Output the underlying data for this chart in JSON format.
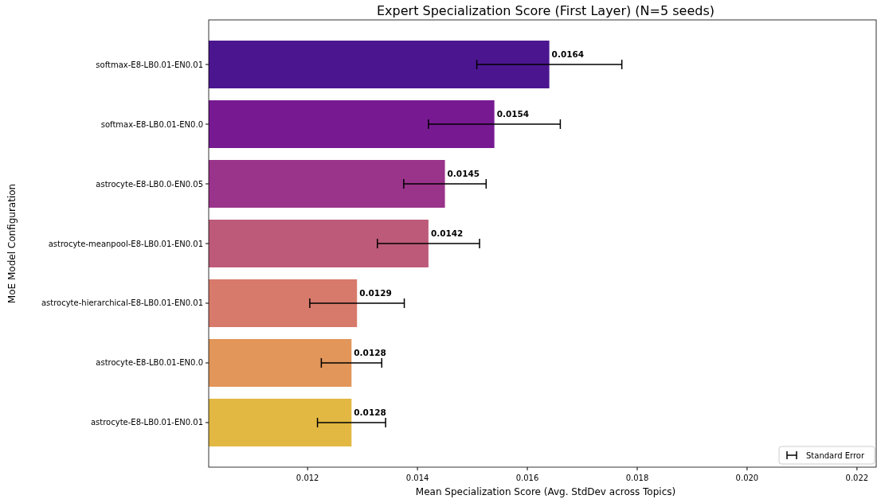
{
  "chart_data": {
    "type": "bar",
    "orientation": "horizontal",
    "title": "Expert Specialization Score (First Layer) (N=5 seeds)",
    "xlabel": "Mean Specialization Score (Avg. StdDev across Topics)",
    "ylabel": "MoE Model Configuration",
    "categories": [
      "softmax-E8-LB0.01-EN0.01",
      "softmax-E8-LB0.01-EN0.0",
      "astrocyte-E8-LB0.0-EN0.05",
      "astrocyte-meanpool-E8-LB0.01-EN0.01",
      "astrocyte-hierarchical-E8-LB0.01-EN0.01",
      "astrocyte-E8-LB0.01-EN0.0",
      "astrocyte-E8-LB0.01-EN0.01"
    ],
    "series": [
      {
        "name": "Standard Error",
        "values": [
          0.0164,
          0.0154,
          0.0145,
          0.0142,
          0.0129,
          0.0128,
          0.0128
        ],
        "colors": [
          "#4b1590",
          "#771a92",
          "#9a338a",
          "#bd5a79",
          "#d77a6b",
          "#e2965a",
          "#e2b842"
        ],
        "errors": [
          0.00132,
          0.0012,
          0.00075,
          0.00093,
          0.00086,
          0.00055,
          0.00062
        ]
      }
    ],
    "xlim": [
      0.0102,
      0.02235
    ],
    "xticks": [
      0.012,
      0.014,
      0.016,
      0.018,
      {
        "value": 0.02,
        "label": "0.020"
      },
      0.022
    ],
    "data_labels": true,
    "legend": "bottom right",
    "grid": false
  }
}
